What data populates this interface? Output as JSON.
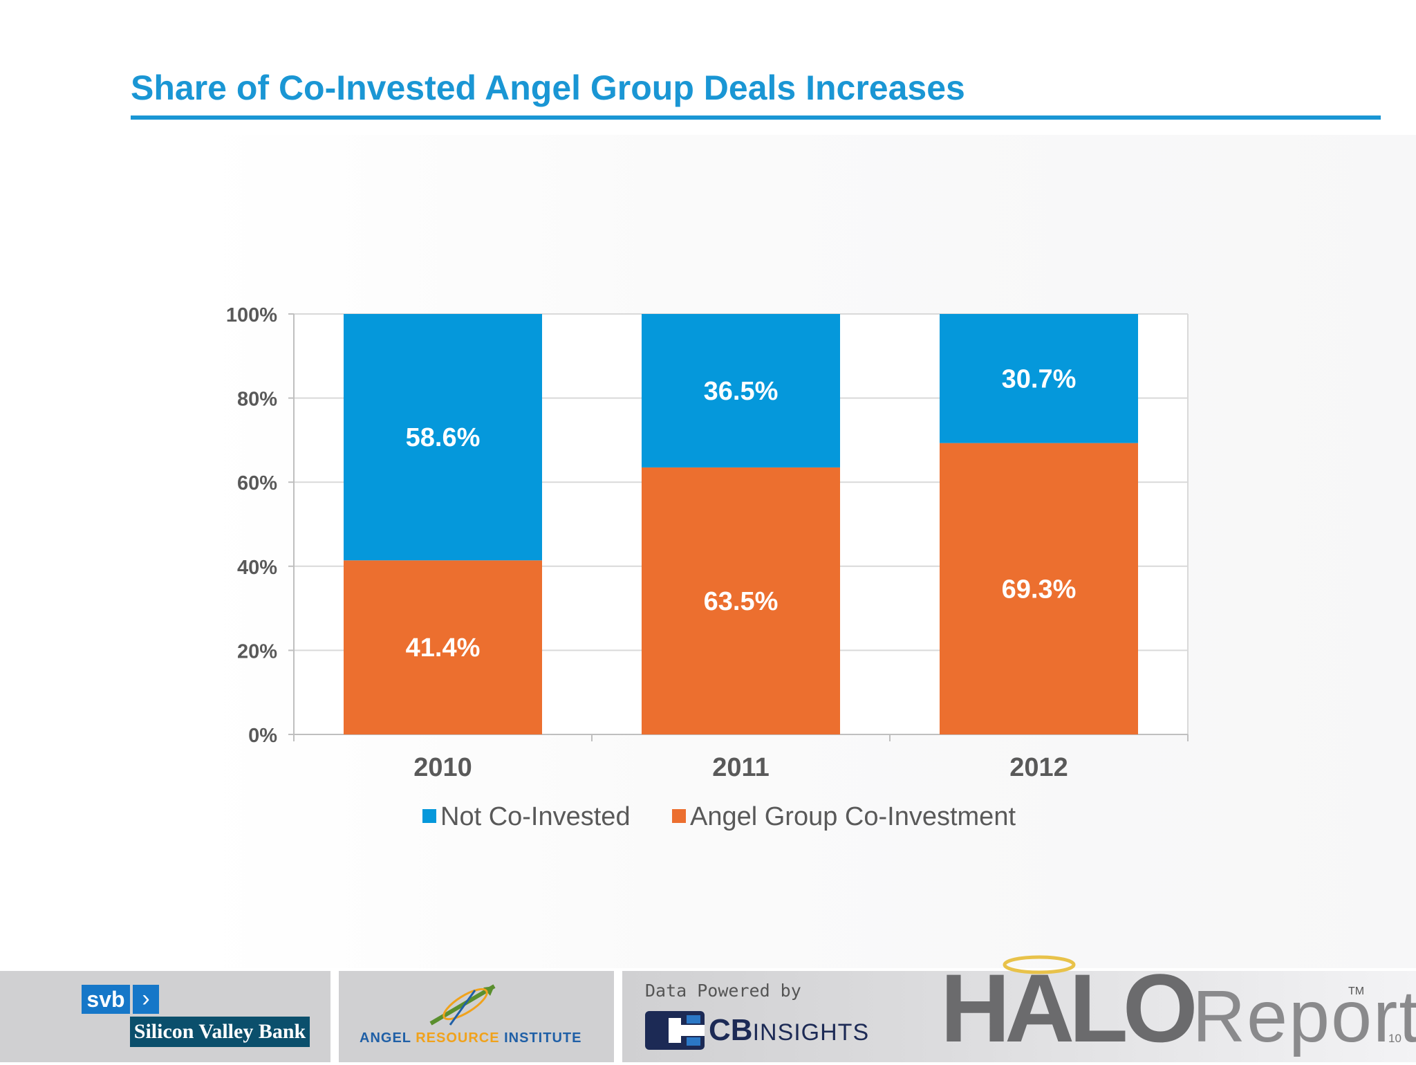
{
  "title": "Share of Co-Invested Angel Group Deals Increases",
  "colors": {
    "accent": "#1a96d4",
    "not_co_invested": "#0598db",
    "co_investment": "#ec6f2f"
  },
  "chart_data": {
    "type": "bar",
    "stacked": true,
    "percent": true,
    "categories": [
      "2010",
      "2011",
      "2012"
    ],
    "series": [
      {
        "name": "Angel Group Co-Investment",
        "values": [
          41.4,
          63.5,
          69.3
        ],
        "labels": [
          "41.4%",
          "63.5%",
          "69.3%"
        ],
        "color": "#ec6f2f"
      },
      {
        "name": "Not Co-Invested",
        "values": [
          58.6,
          36.5,
          30.7
        ],
        "labels": [
          "58.6%",
          "36.5%",
          "30.7%"
        ],
        "color": "#0598db"
      }
    ],
    "ylim": [
      0,
      100
    ],
    "yticks": [
      0,
      20,
      40,
      60,
      80,
      100
    ],
    "ytick_labels": [
      "0%",
      "20%",
      "40%",
      "60%",
      "80%",
      "100%"
    ],
    "grid": true,
    "legend": {
      "position": "bottom",
      "entries": [
        "Not Co-Invested",
        "Angel Group Co-Investment"
      ]
    }
  },
  "footer": {
    "svb": "svb",
    "svb_name": "Silicon Valley Bank",
    "ari_left": "ANGEL ",
    "ari_mid": "RESOURCE",
    "ari_right": " INSTITUTE",
    "powered_by": "Data Powered by",
    "cb_bold": "CB",
    "cb_insights": "INSIGHTS",
    "halo_bold": "HALO",
    "halo_thin": "Report",
    "tm": "TM",
    "page_number": "10"
  }
}
